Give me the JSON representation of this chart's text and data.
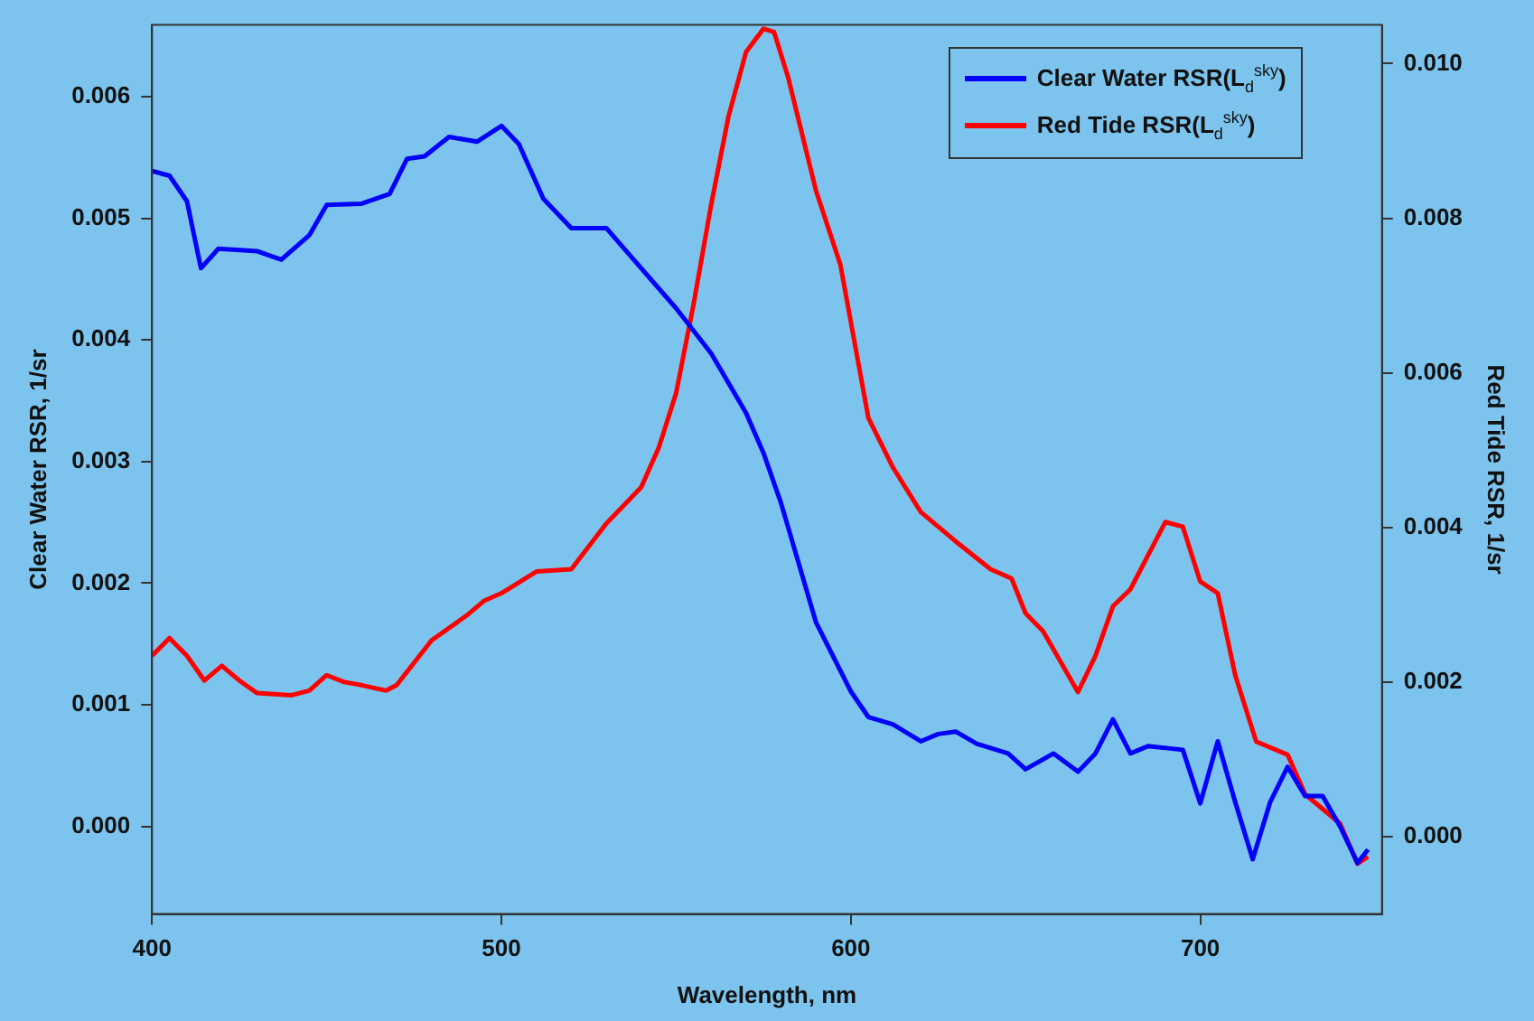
{
  "chart_data": {
    "type": "line",
    "xlabel": "Wavelength, nm",
    "ylabel": "Clear Water RSR, 1/sr",
    "y2label": "Red Tide RSR, 1/sr",
    "xlim": [
      400,
      752
    ],
    "xticks": [
      400,
      500,
      600,
      700
    ],
    "ylim": [
      -0.00072,
      0.00659
    ],
    "yticks": [
      {
        "value": 0,
        "label": "0.000"
      },
      {
        "value": 0.001,
        "label": "0.001"
      },
      {
        "value": 0.002,
        "label": "0.002"
      },
      {
        "value": 0.003,
        "label": "0.003"
      },
      {
        "value": 0.004,
        "label": "0.004"
      },
      {
        "value": 0.005,
        "label": "0.005"
      },
      {
        "value": 0.006,
        "label": "0.006"
      }
    ],
    "y2lim": [
      -0.001,
      0.0105
    ],
    "y2ticks": [
      {
        "value": 0,
        "label": "0.000"
      },
      {
        "value": 0.002,
        "label": "0.002"
      },
      {
        "value": 0.004,
        "label": "0.004"
      },
      {
        "value": 0.006,
        "label": "0.006"
      },
      {
        "value": 0.008,
        "label": "0.008"
      },
      {
        "value": 0.01,
        "label": "0.010"
      }
    ],
    "legend": "top right",
    "marker": "none",
    "line_style": "solid",
    "series": [
      {
        "name": "Clear Water RSR(L$_{d}$$^{sky}$)",
        "color": "#0000ff",
        "axis": "y",
        "x": [
          400,
          405,
          410,
          414,
          419,
          430,
          437,
          445,
          450,
          460,
          468,
          473,
          478,
          485,
          493,
          500,
          505,
          512,
          520,
          530,
          540,
          550,
          560,
          570,
          575,
          580,
          590,
          600,
          605,
          612,
          620,
          625,
          630,
          636,
          645,
          650,
          658,
          665,
          670,
          675,
          680,
          685,
          695,
          700,
          705,
          710,
          715,
          720,
          725,
          730,
          735,
          740,
          745,
          748
        ],
        "values": [
          0.00539,
          0.00535,
          0.00514,
          0.00459,
          0.00475,
          0.00473,
          0.00466,
          0.00486,
          0.00511,
          0.00512,
          0.0052,
          0.00549,
          0.00551,
          0.00567,
          0.00563,
          0.00576,
          0.00561,
          0.00516,
          0.00492,
          0.00492,
          0.00459,
          0.00426,
          0.00389,
          0.0034,
          0.00307,
          0.00266,
          0.00168,
          0.00111,
          0.0009,
          0.00084,
          0.0007,
          0.00076,
          0.00078,
          0.00068,
          0.0006,
          0.00047,
          0.0006,
          0.00045,
          0.0006,
          0.00088,
          0.0006,
          0.00066,
          0.00063,
          0.00019,
          0.0007,
          0.0002,
          -0.00027,
          0.0002,
          0.00049,
          0.00025,
          0.00025,
          0,
          -0.0003,
          -0.00019
        ]
      },
      {
        "name": "Red Tide RSR(L$_{d}$$^{sky}$)",
        "color": "#ff0000",
        "axis": "y2",
        "x": [
          400,
          405,
          410,
          415,
          420,
          425,
          430,
          440,
          445,
          450,
          455,
          460,
          467,
          470,
          480,
          490,
          495,
          500,
          510,
          520,
          530,
          540,
          545,
          550,
          555,
          560,
          565,
          570,
          575,
          578,
          582,
          590,
          597,
          605,
          612,
          620,
          630,
          640,
          646,
          650,
          655,
          665,
          670,
          675,
          680,
          690,
          695,
          700,
          705,
          710,
          716,
          725,
          730,
          740,
          745,
          748
        ],
        "values": [
          0.00234,
          0.00257,
          0.00234,
          0.00202,
          0.00221,
          0.00202,
          0.00186,
          0.00183,
          0.00189,
          0.00209,
          0.002,
          0.00196,
          0.00189,
          0.00196,
          0.00254,
          0.00286,
          0.00305,
          0.00315,
          0.00343,
          0.00346,
          0.00405,
          0.00452,
          0.00503,
          0.00574,
          0.00689,
          0.00817,
          0.00932,
          0.01015,
          0.01045,
          0.01041,
          0.00983,
          0.00836,
          0.0074,
          0.00542,
          0.00478,
          0.0042,
          0.00382,
          0.00346,
          0.00334,
          0.00289,
          0.00266,
          0.00187,
          0.00234,
          0.00298,
          0.0032,
          0.00407,
          0.00401,
          0.0033,
          0.00315,
          0.00209,
          0.00123,
          0.00106,
          0.00055,
          0.00017,
          -0.00035,
          -0.00026
        ]
      }
    ]
  }
}
